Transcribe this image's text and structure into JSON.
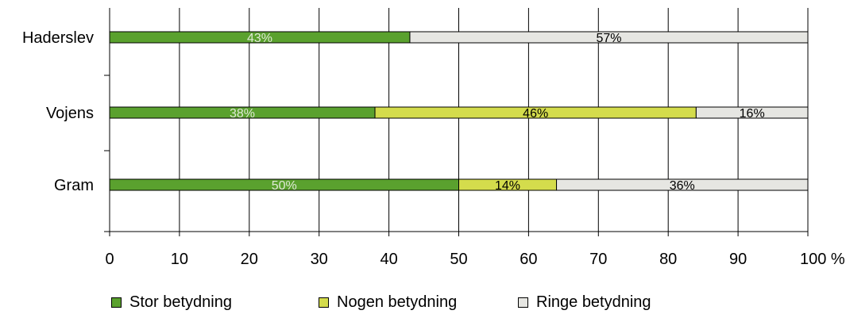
{
  "chart_data": {
    "type": "bar",
    "orientation": "horizontal",
    "stacked": true,
    "categories": [
      "Haderslev",
      "Vojens",
      "Gram"
    ],
    "series": [
      {
        "name": "Stor betydning",
        "values": [
          43,
          38,
          50
        ],
        "labels": [
          "43%",
          "38%",
          "50%"
        ],
        "color": "#5aa12e",
        "label_color": "#dfe9d6"
      },
      {
        "name": "Nogen betydning",
        "values": [
          0,
          46,
          14
        ],
        "labels": [
          "",
          "46%",
          "14%"
        ],
        "color": "#d4dc4c",
        "label_color": "#000000"
      },
      {
        "name": "Ringe betydning",
        "values": [
          57,
          16,
          36
        ],
        "labels": [
          "57%",
          "16%",
          "36%"
        ],
        "color": "#e6e6e2",
        "label_color": "#000000"
      }
    ],
    "xlim": [
      0,
      100
    ],
    "xticks": [
      "0",
      "10",
      "20",
      "30",
      "40",
      "50",
      "60",
      "70",
      "80",
      "90",
      "100 %"
    ],
    "grid": "vertical",
    "legend_position": "bottom"
  }
}
